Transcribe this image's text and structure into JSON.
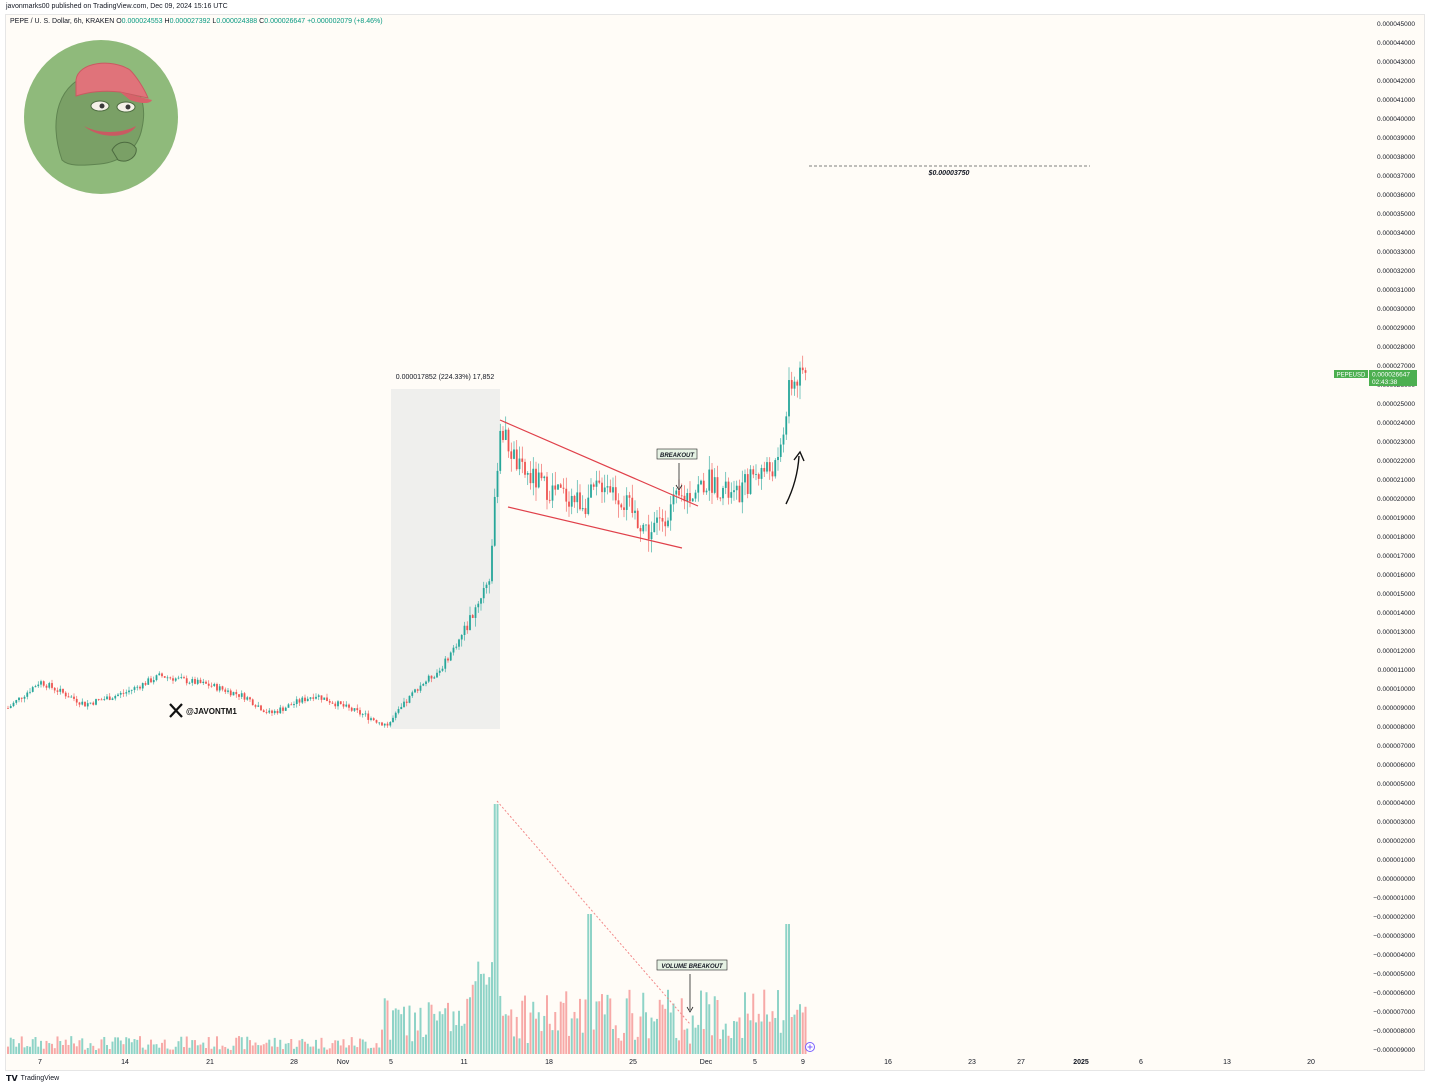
{
  "publisher_line": "javonmarks00 published on TradingView.com, Dec 09, 2024 15:16 UTC",
  "ohlc": {
    "symbol_line": "PEPE / U. S. Dollar, 6h, KRAKEN",
    "open_label": "O",
    "open": "0.000024553",
    "high_label": "H",
    "high": "0.000027392",
    "low_label": "L",
    "low": "0.000024388",
    "close_label": "C",
    "close": "0.000026647",
    "change": "+0.000002079 (+8.46%)"
  },
  "footer": {
    "mark": "𝗧𝗩",
    "brand": "TradingView"
  },
  "colors": {
    "up": "#26a69a",
    "down": "#ef5350",
    "vol_up": "#8ed3c7",
    "vol_down": "#f7a9a7",
    "channel": "#e0404a",
    "price_tag": "#4caf50",
    "avatar_bg": "#8fba7b"
  },
  "annotations": {
    "measure_label": "0.000017852 (224.33%) 17,852",
    "breakout": "BREAKOUT",
    "volume_breakout": "VOLUME BREAKOUT",
    "target_label": "$0.00003750",
    "handle": "@JAVONTM1"
  },
  "price_tag": {
    "symbol": "PEPEUSD",
    "price": "0.000026647",
    "countdown": "02:43:38"
  },
  "icons": {
    "avatar": "pepe-frog-avatar-icon",
    "x_logo": "x-logo-icon",
    "arrow_up": "curved-arrow-up-icon",
    "arrow_down": "arrow-down-icon",
    "add": "add-circle-icon"
  },
  "chart_data": {
    "type": "candlestick",
    "timeframe": "6h",
    "y_ticks": [
      "0.000045000",
      "0.000044000",
      "0.000043000",
      "0.000042000",
      "0.000041000",
      "0.000040000",
      "0.000039000",
      "0.000038000",
      "0.000037000",
      "0.000036000",
      "0.000035000",
      "0.000034000",
      "0.000033000",
      "0.000032000",
      "0.000031000",
      "0.000030000",
      "0.000029000",
      "0.000028000",
      "0.000027000",
      "0.000026000",
      "0.000025000",
      "0.000024000",
      "0.000023000",
      "0.000022000",
      "0.000021000",
      "0.000020000",
      "0.000019000",
      "0.000018000",
      "0.000017000",
      "0.000016000",
      "0.000015000",
      "0.000014000",
      "0.000013000",
      "0.000012000",
      "0.000011000",
      "0.000010000",
      "0.000009000",
      "0.000008000",
      "0.000007000",
      "0.000006000",
      "0.000005000",
      "0.000004000",
      "0.000003000",
      "0.000002000",
      "0.000001000",
      "0.000000000",
      "−0.000001000",
      "−0.000002000",
      "−0.000003000",
      "−0.000004000",
      "−0.000005000",
      "−0.000006000",
      "−0.000007000",
      "−0.000008000",
      "−0.000009000"
    ],
    "y_range": [
      -9e-06,
      4.5e-05
    ],
    "x_ticks": [
      "7",
      "14",
      "21",
      "28",
      "Nov",
      "5",
      "11",
      "18",
      "25",
      "Dec",
      "5",
      "9",
      "16",
      "23",
      "27",
      "2025",
      "6",
      "13",
      "20"
    ],
    "price_path": [
      [
        "Oct 7",
        9e-06
      ],
      [
        "Oct 9",
        1.04e-05
      ],
      [
        "Oct 12",
        9.2e-06
      ],
      [
        "Oct 14",
        9.8e-06
      ],
      [
        "Oct 17",
        1.07e-05
      ],
      [
        "Oct 21",
        1.02e-05
      ],
      [
        "Oct 24",
        9.6e-06
      ],
      [
        "Oct 27",
        8.7e-06
      ],
      [
        "Oct 30",
        9.7e-06
      ],
      [
        "Nov 4",
        8.1e-06
      ],
      [
        "Nov 7",
        1.01e-05
      ],
      [
        "Nov 9",
        1.1e-05
      ],
      [
        "Nov 11",
        1.3e-05
      ],
      [
        "Nov 12",
        1.6e-05
      ],
      [
        "Nov 13",
        2.38e-05
      ],
      [
        "Nov 15",
        2.15e-05
      ],
      [
        "Nov 18",
        2.05e-05
      ],
      [
        "Nov 21",
        1.98e-05
      ],
      [
        "Nov 23",
        2.1e-05
      ],
      [
        "Nov 26",
        1.82e-05
      ],
      [
        "Nov 28",
        1.98e-05
      ],
      [
        "Dec 1",
        2.1e-05
      ],
      [
        "Dec 3",
        2e-05
      ],
      [
        "Dec 5",
        2.14e-05
      ],
      [
        "Dec 7",
        2.17e-05
      ],
      [
        "Dec 8",
        2.6e-05
      ],
      [
        "Dec 9",
        2.66e-05
      ]
    ],
    "measure": {
      "from": 8e-06,
      "to": 2.58e-05,
      "change": "0.000017852 (224.33%) 17,852"
    },
    "target": 3.75e-05,
    "volume_note": "volume bars drawn in lower pane; no numeric volume axis shown"
  }
}
